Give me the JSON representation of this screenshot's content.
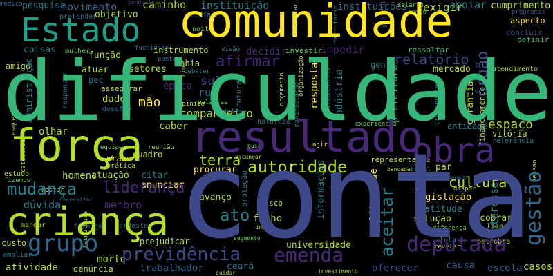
{
  "palette": {
    "background": "#000000",
    "yellow": "#fde725",
    "lime": "#b5de2b",
    "green": "#6ece58",
    "teal": "#35b779",
    "cyan": "#1f9e89",
    "blue": "#26828e",
    "slate": "#31688e",
    "indigo": "#3e4989",
    "purple": "#482878",
    "deep": "#440154"
  },
  "words": {
    "conta": "conta",
    "dificuldade": "dificuldade",
    "comunidade": "comunidade",
    "estado": "Estado",
    "forca": "força",
    "resultado": "resultado",
    "crianca": "criança",
    "obra": "obra",
    "grupo": "grupo",
    "mudanca": "mudança",
    "deputada": "deputada",
    "emenda": "emenda",
    "previdencia": "previdência",
    "autoridade": "autoridade",
    "gestao": "gestão",
    "lideranca": "liderança",
    "afirmar": "afirmar",
    "relatorio": "relatório",
    "orgao": "órgão",
    "espaco": "espaço",
    "cultura": "cultura",
    "aceitar": "aceitar",
    "companheiro": "companheiro",
    "terra": "terra",
    "ato": "ato",
    "mao": "mão",
    "movimento": "movimento",
    "caminho": "caminho",
    "instituicao": "instituição",
    "instituicoes": "instituições",
    "exigir": "exigir",
    "apoiar": "apoiar",
    "cumprimento": "cumprimento",
    "pesquisa": "pesquisa",
    "objetivo": "objetivo",
    "unidade": "unidade",
    "coisas": "coisas",
    "funcao": "função",
    "instrumento": "instrumento",
    "decidir": "decidir",
    "investir": "investir",
    "impedir": "impedir",
    "amigo": "amigo",
    "atuar": "atuar",
    "setores": "setores",
    "mercado": "mercado",
    "epoca": "época",
    "sul": "sul",
    "rua": "rua",
    "estrutura": "estrutura",
    "resposta": "resposta",
    "pandemia": "pandemia",
    "industria": "indústria",
    "bahia": "bahia",
    "debater": "debater",
    "gente": "gente",
    "atendimento": "atendimento",
    "financiamento": "financiamento",
    "casos": "casos",
    "garantia": "garantia",
    "prefeitura": "prefeitura",
    "dado": "dado",
    "caber": "caber",
    "olhar": "olhar",
    "entidade": "entidade",
    "vitoria": "vitória",
    "referencia": "referência",
    "procurar": "procurar",
    "anunciar": "anunciar",
    "citar": "citar",
    "atuacao": "atuação",
    "homens": "homens",
    "duvida": "dúvida",
    "membro": "membro",
    "avanco": "avanço",
    "legislacao": "legislação",
    "atitude": "atitude",
    "interesses": "interesses",
    "solucao": "solução",
    "servir": "servir",
    "filho": "filho",
    "informacoes": "informações",
    "liberdade": "liberdade",
    "protecao": "proteção",
    "risco": "risco",
    "custo": "custo",
    "prejudicar": "prejudicar",
    "morte": "morte",
    "trabalhador": "trabalhador",
    "atividade": "atividade",
    "denuncia": "denúncia",
    "universidade": "universidade",
    "oferecer": "oferecer",
    "escola": "escola",
    "causa": "causa",
    "representante": "representante",
    "par": "par",
    "cobrar": "cobrar",
    "assegurar": "assegurar",
    "prazo": "prazo",
    "quadro": "quadro",
    "equipe": "equipe",
    "pratica": "prática",
    "estudo": "estudo",
    "modelo": "modelo",
    "natureza": "natureza",
    "experiencia": "experiência",
    "palavras": "palavras",
    "ressaltar": "ressaltar",
    "aspecto": "aspecto",
    "definir": "definir",
    "concluir": "concluir",
    "noite": "noite",
    "mulher": "mulher",
    "pontos": "pontos",
    "visao": "visão",
    "salario": "salário",
    "pretender": "pretender",
    "programas": "programas",
    "territorio": "território",
    "campo": "campo",
    "desafio": "desafio",
    "opiniao": "opinião",
    "fizemos": "fizemos",
    "bastar": "bastar",
    "mandar": "mandar",
    "ampliar": "ampliar",
    "senado": "senado",
    "lula": "lula",
    "diferenca": "diferença",
    "ligar": "ligar",
    "petrobra": "petrobra",
    "revelar": "revelar",
    "cuidar": "cuidar",
    "investimento": "investimento",
    "nordeste": "nordeste",
    "formacao": "formação",
    "administracao": "administração",
    "pec": "pec",
    "rio": "rio",
    "segmento": "segmento",
    "reuniao": "reunião",
    "bancada": "bancada",
    "brasil": "brasil",
    "transporte": "transporte",
    "manifestacao": "manifestação",
    "conduzir": "conduzir",
    "funcionar": "funcionar",
    "medico": "médico",
    "publico": "público",
    "indicar": "indicar",
    "dispor": "dispor",
    "impor": "impor",
    "ceara": "ceará",
    "responder": "responder",
    "esquecer": "esquecer",
    "categoria": "categoria",
    "orcamento": "orçamento",
    "organizacao": "organização",
    "tecnologia": "tecnologia",
    "agir": "agir",
    "busca": "busca",
    "alcancar": "alcançar",
    "necessitar": "necessitar",
    "sessao": "sessão"
  }
}
